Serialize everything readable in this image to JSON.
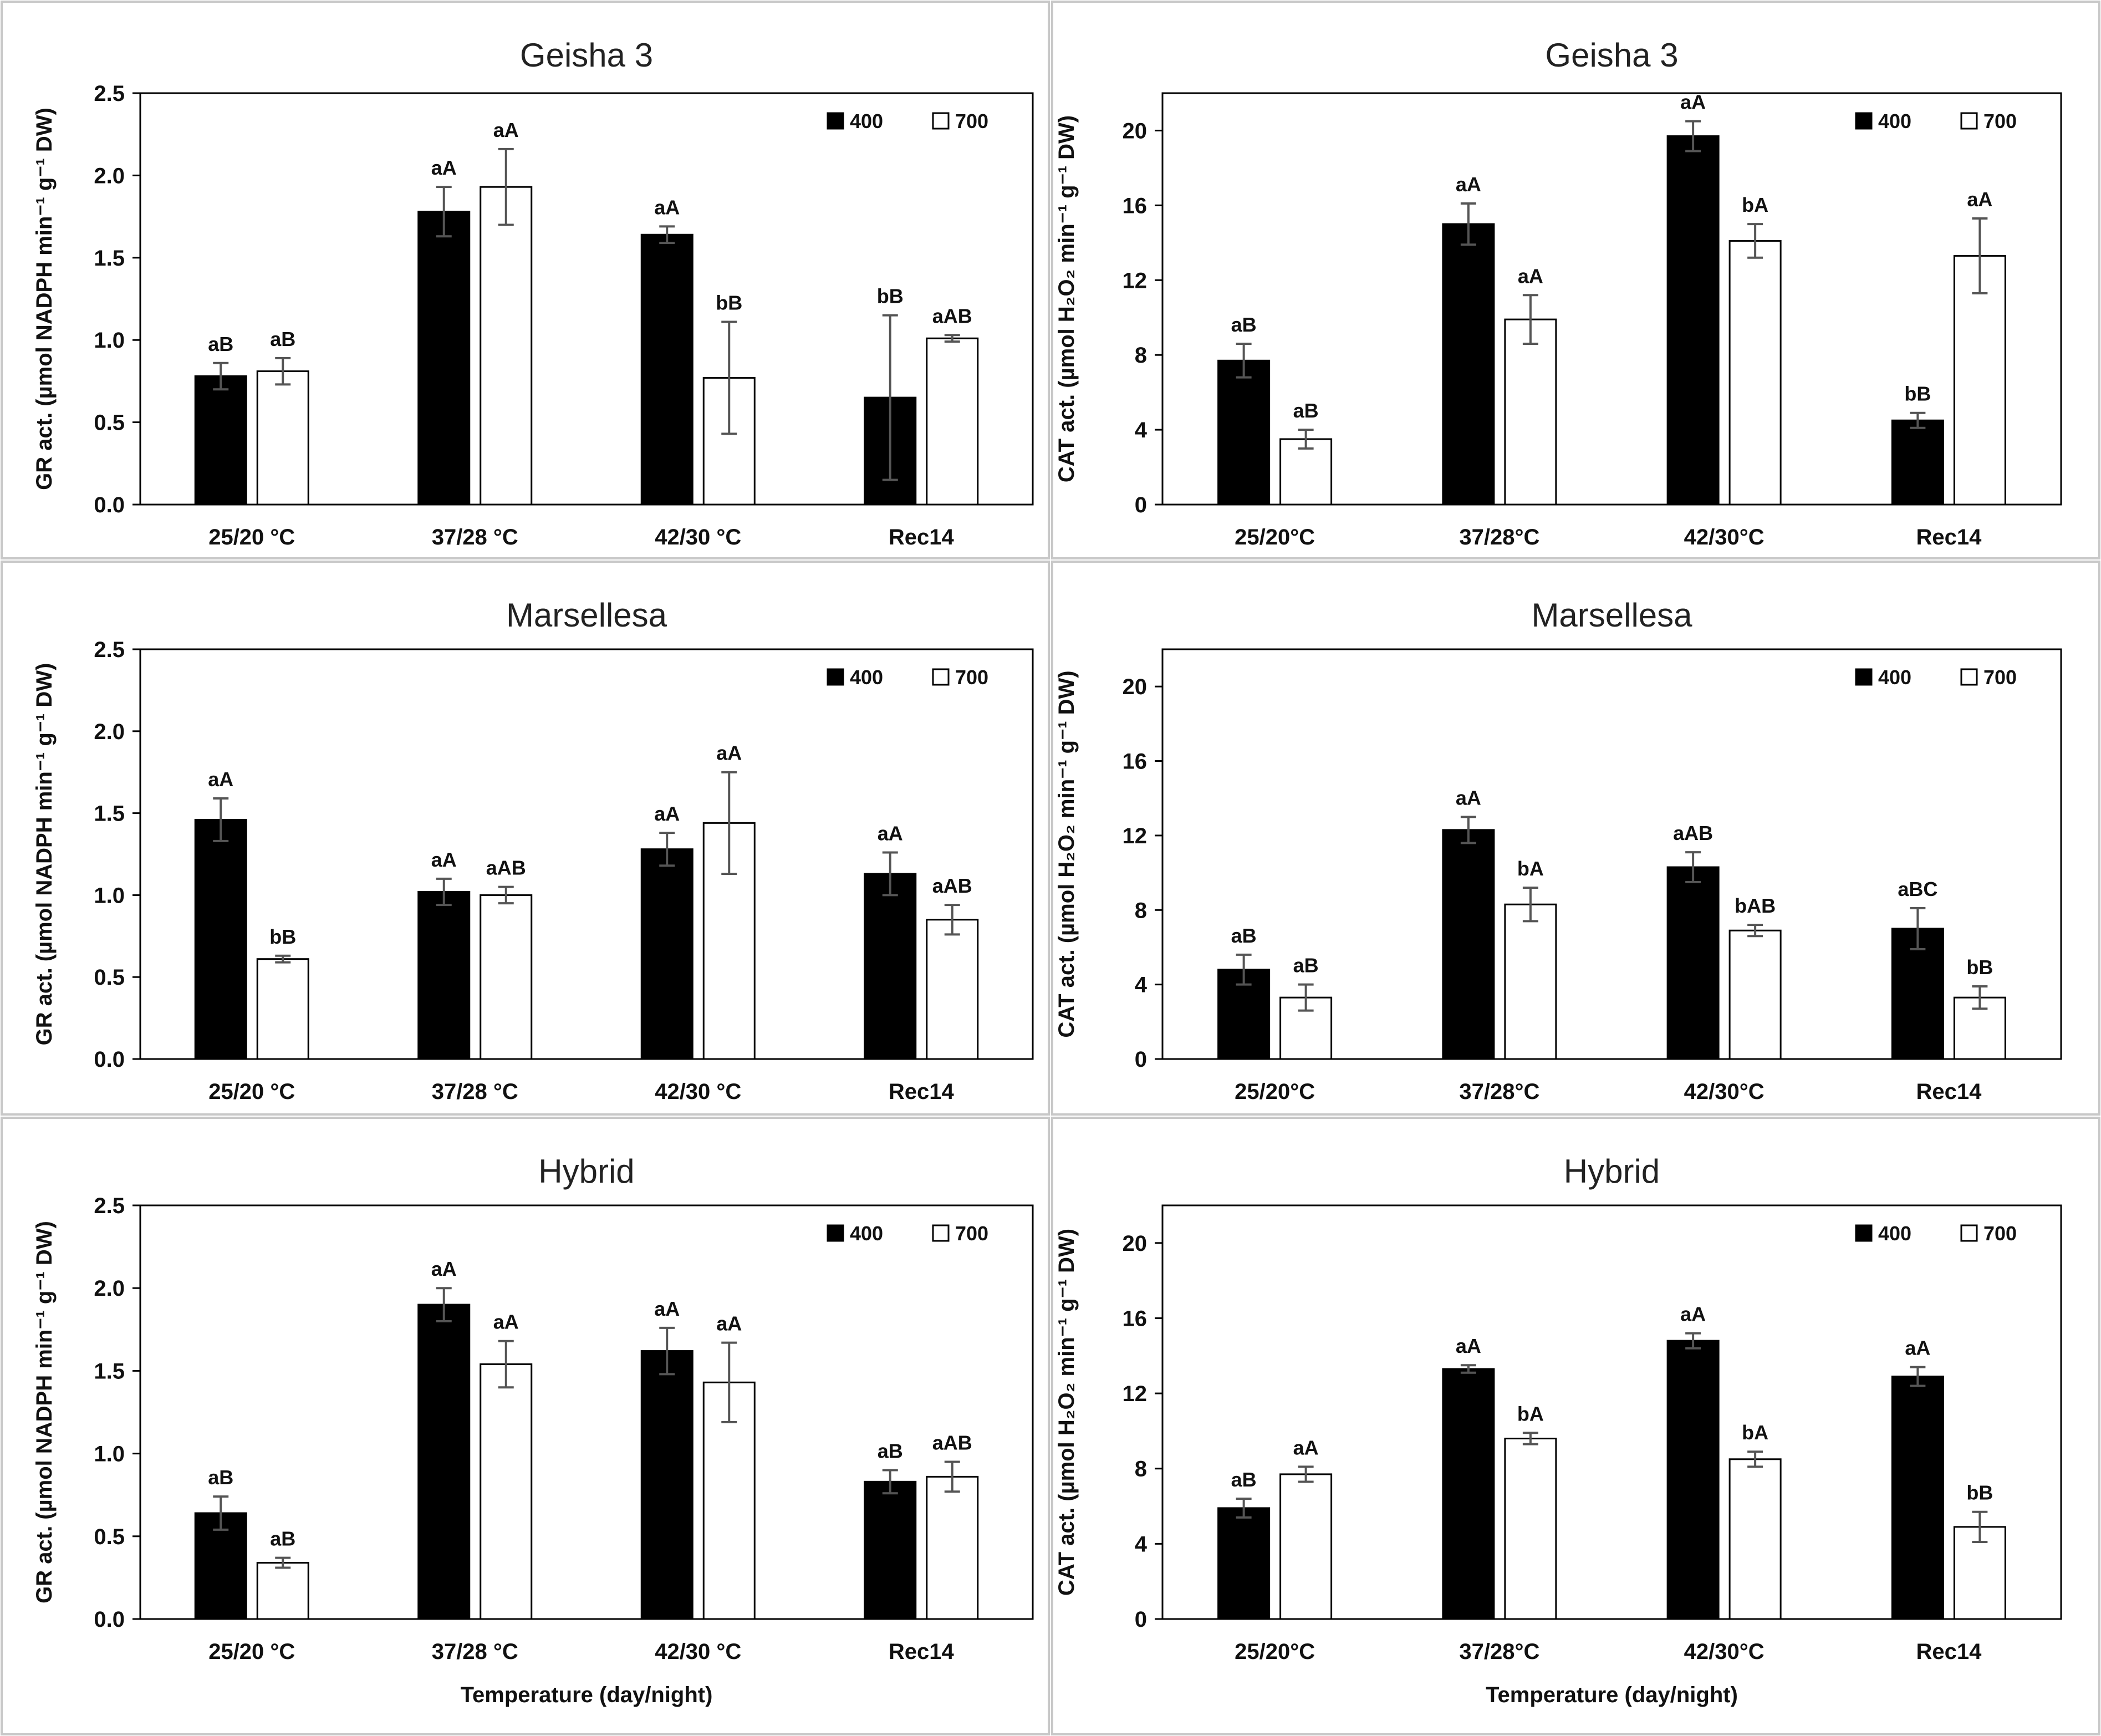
{
  "colors": {
    "bar_400": "#000000",
    "bar_700": "#ffffff",
    "bar_stroke": "#000000",
    "error_bar": "#555555",
    "panel_border": "#c8c8c8"
  },
  "shared": {
    "categories_gr": [
      "25/20 °C",
      "37/28 °C",
      "42/30 °C",
      "Rec14"
    ],
    "categories_cat": [
      "25/20°C",
      "37/28°C",
      "42/30°C",
      "Rec14"
    ],
    "x_title": "Temperature (day/night)",
    "gr_ylabel": "GR act. (µmol NADPH min⁻¹ g⁻¹ DW)",
    "cat_ylabel": "CAT act. (µmol H₂O₂ min⁻¹ g⁻¹ DW)",
    "legend": [
      "400",
      "700"
    ]
  },
  "chart_data": [
    {
      "type": "bar",
      "title": "Geisha 3",
      "metric": "GR",
      "categories": [
        "25/20 °C",
        "37/28 °C",
        "42/30 °C",
        "Rec14"
      ],
      "ylim": [
        0,
        2.5
      ],
      "yticks": [
        "0.0",
        "0.5",
        "1.0",
        "1.5",
        "2.0",
        "2.5"
      ],
      "ytick_values": [
        0,
        0.5,
        1.0,
        1.5,
        2.0,
        2.5
      ],
      "ylabel": "GR act. (µmol NADPH min⁻¹ g⁻¹ DW)",
      "xlabel": "",
      "series": [
        {
          "name": "400",
          "values": [
            0.78,
            1.78,
            1.64,
            0.65
          ],
          "errors": [
            0.08,
            0.15,
            0.05,
            0.5
          ],
          "labels": [
            "aB",
            "aA",
            "aA",
            "bB"
          ]
        },
        {
          "name": "700",
          "values": [
            0.81,
            1.93,
            0.77,
            1.01
          ],
          "errors": [
            0.08,
            0.23,
            0.34,
            0.02
          ],
          "labels": [
            "aB",
            "aA",
            "bB",
            "aAB"
          ]
        }
      ]
    },
    {
      "type": "bar",
      "title": "Geisha 3",
      "metric": "CAT",
      "categories": [
        "25/20°C",
        "37/28°C",
        "42/30°C",
        "Rec14"
      ],
      "ylim": [
        0,
        22
      ],
      "yticks": [
        "0",
        "4",
        "8",
        "12",
        "16",
        "20"
      ],
      "ytick_values": [
        0,
        4,
        8,
        12,
        16,
        20
      ],
      "ylabel": "CAT act. (µmol H₂O₂ min⁻¹ g⁻¹ DW)",
      "xlabel": "",
      "series": [
        {
          "name": "400",
          "values": [
            7.7,
            15.0,
            19.7,
            4.5
          ],
          "errors": [
            0.9,
            1.1,
            0.8,
            0.4
          ],
          "labels": [
            "aB",
            "aA",
            "aA",
            "bB"
          ]
        },
        {
          "name": "700",
          "values": [
            3.5,
            9.9,
            14.1,
            13.3
          ],
          "errors": [
            0.5,
            1.3,
            0.9,
            2.0
          ],
          "labels": [
            "aB",
            "aA",
            "bA",
            "aA"
          ]
        }
      ]
    },
    {
      "type": "bar",
      "title": "Marsellesa",
      "metric": "GR",
      "categories": [
        "25/20 °C",
        "37/28 °C",
        "42/30 °C",
        "Rec14"
      ],
      "ylim": [
        0,
        2.5
      ],
      "yticks": [
        "0.0",
        "0.5",
        "1.0",
        "1.5",
        "2.0",
        "2.5"
      ],
      "ytick_values": [
        0,
        0.5,
        1.0,
        1.5,
        2.0,
        2.5
      ],
      "ylabel": "GR act. (µmol NADPH min⁻¹ g⁻¹ DW)",
      "xlabel": "",
      "series": [
        {
          "name": "400",
          "values": [
            1.46,
            1.02,
            1.28,
            1.13
          ],
          "errors": [
            0.13,
            0.08,
            0.1,
            0.13
          ],
          "labels": [
            "aA",
            "aA",
            "aA",
            "aA"
          ]
        },
        {
          "name": "700",
          "values": [
            0.61,
            1.0,
            1.44,
            0.85
          ],
          "errors": [
            0.02,
            0.05,
            0.31,
            0.09
          ],
          "labels": [
            "bB",
            "aAB",
            "aA",
            "aAB"
          ]
        }
      ]
    },
    {
      "type": "bar",
      "title": "Marsellesa",
      "metric": "CAT",
      "categories": [
        "25/20°C",
        "37/28°C",
        "42/30°C",
        "Rec14"
      ],
      "ylim": [
        0,
        22
      ],
      "yticks": [
        "0",
        "4",
        "8",
        "12",
        "16",
        "20"
      ],
      "ytick_values": [
        0,
        4,
        8,
        12,
        16,
        20
      ],
      "ylabel": "CAT act. (µmol H₂O₂ min⁻¹ g⁻¹ DW)",
      "xlabel": "",
      "series": [
        {
          "name": "400",
          "values": [
            4.8,
            12.3,
            10.3,
            7.0
          ],
          "errors": [
            0.8,
            0.7,
            0.8,
            1.1
          ],
          "labels": [
            "aB",
            "aA",
            "aAB",
            "aBC"
          ]
        },
        {
          "name": "700",
          "values": [
            3.3,
            8.3,
            6.9,
            3.3
          ],
          "errors": [
            0.7,
            0.9,
            0.3,
            0.6
          ],
          "labels": [
            "aB",
            "bA",
            "bAB",
            "bB"
          ]
        }
      ]
    },
    {
      "type": "bar",
      "title": "Hybrid",
      "metric": "GR",
      "categories": [
        "25/20 °C",
        "37/28 °C",
        "42/30 °C",
        "Rec14"
      ],
      "ylim": [
        0,
        2.5
      ],
      "yticks": [
        "0.0",
        "0.5",
        "1.0",
        "1.5",
        "2.0",
        "2.5"
      ],
      "ytick_values": [
        0,
        0.5,
        1.0,
        1.5,
        2.0,
        2.5
      ],
      "ylabel": "GR act. (µmol NADPH min⁻¹ g⁻¹ DW)",
      "xlabel": "Temperature (day/night)",
      "series": [
        {
          "name": "400",
          "values": [
            0.64,
            1.9,
            1.62,
            0.83
          ],
          "errors": [
            0.1,
            0.1,
            0.14,
            0.07
          ],
          "labels": [
            "aB",
            "aA",
            "aA",
            "aB"
          ]
        },
        {
          "name": "700",
          "values": [
            0.34,
            1.54,
            1.43,
            0.86
          ],
          "errors": [
            0.03,
            0.14,
            0.24,
            0.09
          ],
          "labels": [
            "aB",
            "aA",
            "aA",
            "aAB"
          ]
        }
      ]
    },
    {
      "type": "bar",
      "title": "Hybrid",
      "metric": "CAT",
      "categories": [
        "25/20°C",
        "37/28°C",
        "42/30°C",
        "Rec14"
      ],
      "ylim": [
        0,
        22
      ],
      "yticks": [
        "0",
        "4",
        "8",
        "12",
        "16",
        "20"
      ],
      "ytick_values": [
        0,
        4,
        8,
        12,
        16,
        20
      ],
      "ylabel": "CAT act. (µmol H₂O₂ min⁻¹ g⁻¹ DW)",
      "xlabel": "Temperature (day/night)",
      "series": [
        {
          "name": "400",
          "values": [
            5.9,
            13.3,
            14.8,
            12.9
          ],
          "errors": [
            0.5,
            0.2,
            0.4,
            0.5
          ],
          "labels": [
            "aB",
            "aA",
            "aA",
            "aA"
          ]
        },
        {
          "name": "700",
          "values": [
            7.7,
            9.6,
            8.5,
            4.9
          ],
          "errors": [
            0.4,
            0.3,
            0.4,
            0.8
          ],
          "labels": [
            "aA",
            "bA",
            "bA",
            "bB"
          ]
        }
      ]
    }
  ]
}
